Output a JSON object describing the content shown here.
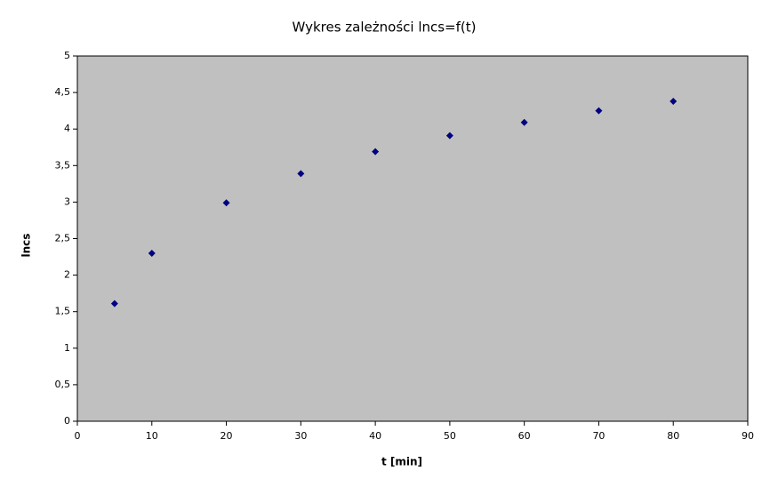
{
  "chart_data": {
    "type": "scatter",
    "title": "Wykres zależności lncs=f(t)",
    "x_label": "t [min]",
    "y_label": "lncs",
    "x": [
      5,
      10,
      20,
      30,
      40,
      50,
      60,
      70,
      80
    ],
    "series": [
      {
        "color": "#000080",
        "values": [
          1.61,
          2.3,
          2.99,
          3.39,
          3.69,
          3.91,
          4.09,
          4.25,
          4.38
        ]
      }
    ],
    "xlim": [
      0,
      90
    ],
    "xticks": [
      0,
      10,
      20,
      30,
      40,
      50,
      60,
      70,
      80,
      90
    ],
    "ylim": [
      0,
      5
    ],
    "yticks": [
      0,
      {
        "value": 0.5,
        "label": "0,5"
      },
      1,
      {
        "value": 1.5,
        "label": "1,5"
      },
      2,
      {
        "value": 2.5,
        "label": "2,5"
      },
      3,
      {
        "value": 3.5,
        "label": "3,5"
      },
      4,
      {
        "value": 4.5,
        "label": "4,5"
      },
      5
    ],
    "plot_background": "#c0c0c0",
    "grid": false
  }
}
